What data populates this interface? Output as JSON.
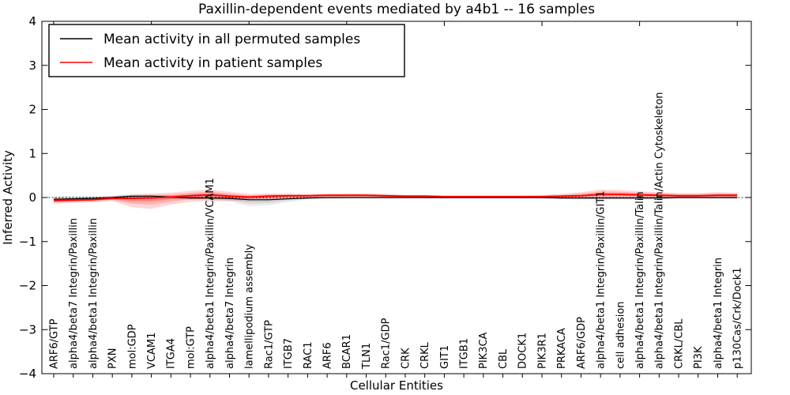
{
  "chart_data": {
    "type": "line",
    "title": "Paxillin-dependent events mediated by a4b1 -- 16 samples",
    "xlabel": "Cellular Entities",
    "ylabel": "Inferred Activity",
    "ylim": [
      -4,
      4
    ],
    "yticks": [
      -4,
      -3,
      -2,
      -1,
      0,
      1,
      2,
      3,
      4
    ],
    "grid": false,
    "zero_line": true,
    "legend_position": "upper left",
    "categories": [
      "ARF6/GTP",
      "alpha4/beta7 Integrin/Paxillin",
      "alpha4/beta1 Integrin/Paxillin",
      "PXN",
      "mol:GDP",
      "VCAM1",
      "ITGA4",
      "mol:GTP",
      "alpha4/beta1 Integrin/Paxillin/VCAM1",
      "alpha4/beta7 Integrin",
      "lamellipodium assembly",
      "Rac1/GTP",
      "ITGB7",
      "RAC1",
      "ARF6",
      "BCAR1",
      "TLN1",
      "Rac1/GDP",
      "CRK",
      "CRKL",
      "GIT1",
      "ITGB1",
      "PIK3CA",
      "CBL",
      "DOCK1",
      "PIK3R1",
      "PRKACA",
      "ARF6/GDP",
      "alpha4/beta1 Integrin/Paxillin/GIT1",
      "cell adhesion",
      "alpha4/beta1 Integrin/Paxillin/Talin",
      "alpha4/beta1 Integrin/Paxillin/Talin/Actin Cytoskeleton",
      "CRKL/CBL",
      "PI3K",
      "alpha4/beta1 Integrin",
      "p130Cas/Crk/Dock1"
    ],
    "series": [
      {
        "name": "Mean activity in all permuted samples",
        "color": "#000000",
        "band_color": "#888888",
        "values": [
          -0.04,
          -0.03,
          -0.02,
          0.0,
          0.03,
          0.03,
          0.01,
          -0.01,
          -0.01,
          -0.02,
          -0.05,
          -0.05,
          -0.03,
          -0.01,
          0.0,
          0.0,
          0.0,
          0.0,
          0.0,
          0.0,
          0.0,
          0.0,
          0.0,
          0.0,
          0.0,
          0.0,
          -0.01,
          -0.01,
          -0.01,
          -0.01,
          -0.01,
          -0.01,
          0.0,
          0.0,
          0.0,
          0.0
        ],
        "band_low": [
          -0.1,
          -0.09,
          -0.07,
          -0.05,
          -0.02,
          -0.02,
          -0.04,
          -0.05,
          -0.06,
          -0.09,
          -0.2,
          -0.18,
          -0.1,
          -0.05,
          -0.04,
          -0.03,
          -0.03,
          -0.03,
          -0.03,
          -0.03,
          -0.03,
          -0.03,
          -0.03,
          -0.03,
          -0.03,
          -0.03,
          -0.04,
          -0.05,
          -0.05,
          -0.05,
          -0.05,
          -0.04,
          -0.03,
          -0.03,
          -0.04,
          -0.04
        ],
        "band_high": [
          0.03,
          0.03,
          0.03,
          0.04,
          0.07,
          0.07,
          0.05,
          0.04,
          0.04,
          0.03,
          0.03,
          0.03,
          0.03,
          0.02,
          0.02,
          0.02,
          0.02,
          0.02,
          0.02,
          0.02,
          0.02,
          0.02,
          0.02,
          0.02,
          0.02,
          0.02,
          0.02,
          0.02,
          0.02,
          0.02,
          0.02,
          0.02,
          0.02,
          0.02,
          0.02,
          0.02
        ]
      },
      {
        "name": "Mean activity in patient samples",
        "color": "#ff0000",
        "band_color": "#ff0000",
        "values": [
          -0.07,
          -0.06,
          -0.05,
          -0.02,
          -0.02,
          -0.01,
          0.01,
          0.04,
          0.06,
          0.03,
          0.01,
          0.03,
          0.04,
          0.04,
          0.05,
          0.05,
          0.05,
          0.04,
          0.03,
          0.03,
          0.02,
          0.02,
          0.02,
          0.02,
          0.02,
          0.02,
          0.03,
          0.04,
          0.07,
          0.07,
          0.06,
          0.05,
          0.04,
          0.04,
          0.05,
          0.05
        ],
        "band_low": [
          -0.14,
          -0.12,
          -0.11,
          -0.08,
          -0.22,
          -0.26,
          -0.16,
          -0.1,
          -0.08,
          -0.08,
          -0.06,
          -0.04,
          -0.02,
          -0.01,
          0.0,
          0.0,
          0.0,
          -0.01,
          -0.01,
          -0.01,
          -0.02,
          -0.02,
          -0.02,
          -0.02,
          -0.02,
          -0.02,
          -0.02,
          -0.02,
          -0.03,
          -0.02,
          -0.02,
          -0.02,
          -0.02,
          -0.02,
          -0.01,
          -0.02
        ],
        "band_high": [
          -0.01,
          0.0,
          0.01,
          0.03,
          0.07,
          0.09,
          0.11,
          0.15,
          0.18,
          0.13,
          0.08,
          0.09,
          0.09,
          0.08,
          0.09,
          0.09,
          0.09,
          0.08,
          0.06,
          0.06,
          0.05,
          0.05,
          0.05,
          0.05,
          0.05,
          0.06,
          0.08,
          0.12,
          0.18,
          0.17,
          0.14,
          0.12,
          0.1,
          0.1,
          0.12,
          0.11
        ]
      }
    ]
  }
}
